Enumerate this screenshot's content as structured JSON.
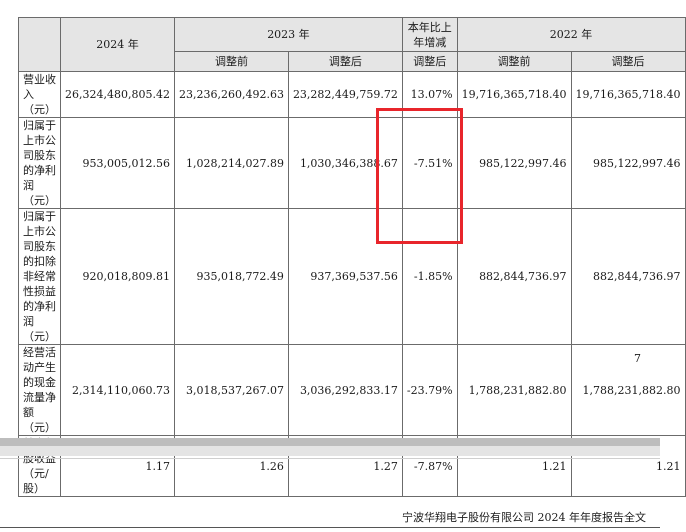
{
  "table": {
    "headers": {
      "y2024": "2024 年",
      "y2023": "2023 年",
      "yoy": "本年比上年增减",
      "y2022": "2022 年",
      "before": "调整前",
      "after": "调整后",
      "yoy_sub": "调整后",
      "before22": "调整前",
      "after22": "调整后"
    },
    "rows": [
      {
        "label": "营业收入（元）",
        "v2024": "26,324,480,805.42",
        "v2023_before": "23,236,260,492.63",
        "v2023_after": "23,282,449,759.72",
        "yoy": "13.07%",
        "v2022_before": "19,716,365,718.40",
        "v2022_after": "19,716,365,718.40"
      },
      {
        "label": "归属于上市公司股东的净利润（元）",
        "v2024": "953,005,012.56",
        "v2023_before": "1,028,214,027.89",
        "v2023_after": "1,030,346,388.67",
        "yoy": "-7.51%",
        "v2022_before": "985,122,997.46",
        "v2022_after": "985,122,997.46"
      },
      {
        "label": "归属于上市公司股东的扣除非经常性损益的净利润（元）",
        "v2024": "920,018,809.81",
        "v2023_before": "935,018,772.49",
        "v2023_after": "937,369,537.56",
        "yoy": "-1.85%",
        "v2022_before": "882,844,736.97",
        "v2022_after": "882,844,736.97"
      },
      {
        "label": "经营活动产生的现金流量净额（元）",
        "v2024": "2,314,110,060.73",
        "v2023_before": "3,018,537,267.07",
        "v2023_after": "3,036,292,833.17",
        "yoy": "-23.79%",
        "v2022_before": "1,788,231,882.80",
        "v2022_after": "1,788,231,882.80"
      },
      {
        "label": "基本每股收益（元/股）",
        "v2024": "1.17",
        "v2023_before": "1.26",
        "v2023_after": "1.27",
        "yoy": "-7.87%",
        "v2022_before": "1.21",
        "v2022_after": "1.21"
      }
    ]
  },
  "page_number": "7",
  "footer": "宁波华翔电子股份有限公司 2024 年年度报告全文",
  "colors": {
    "highlight": "#e8252b",
    "header_bg": "#e5e5e5"
  }
}
